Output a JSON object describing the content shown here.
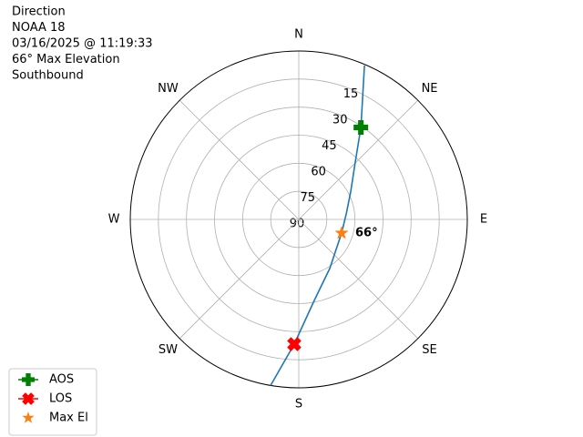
{
  "chart_data": {
    "type": "polar",
    "title_lines": [
      "Direction",
      "NOAA 18",
      "03/16/2025 @ 11:19:33",
      "66° Max Elevation",
      "Southbound"
    ],
    "xlim": [
      0,
      360
    ],
    "xticks": [
      {
        "value": 0,
        "label": "N"
      },
      {
        "value": 45,
        "label": "NE"
      },
      {
        "value": 90,
        "label": "E"
      },
      {
        "value": 135,
        "label": "SE"
      },
      {
        "value": 180,
        "label": "S"
      },
      {
        "value": 225,
        "label": "SW"
      },
      {
        "value": 270,
        "label": "W"
      },
      {
        "value": 315,
        "label": "NW"
      }
    ],
    "ylim": [
      90,
      0
    ],
    "yticks": [
      15,
      30,
      45,
      60,
      75,
      90
    ],
    "grid": true,
    "track": {
      "color": "#1f77b4",
      "x": [
        23.1,
        34,
        44.5,
        61.5,
        83.4,
        107.7,
        147.8,
        169.2,
        182.1,
        189.6
      ],
      "values": [
        0.6,
        30.7,
        47,
        58.4,
        64.5,
        66,
        59,
        45.9,
        23.3,
        0
      ]
    },
    "series": [
      {
        "name": "AOS",
        "color": "#008000",
        "marker": "plus",
        "x": [
          34
        ],
        "values": [
          30.7
        ]
      },
      {
        "name": "LOS",
        "color": "#ff0000",
        "marker": "cross",
        "x": [
          182.1
        ],
        "values": [
          23.3
        ]
      },
      {
        "name": "Max El",
        "color": "#ff7f0e",
        "marker": "star",
        "x": [
          107.7
        ],
        "values": [
          66
        ],
        "value_labels": [
          "66°"
        ]
      }
    ],
    "legend": "lower-left"
  }
}
